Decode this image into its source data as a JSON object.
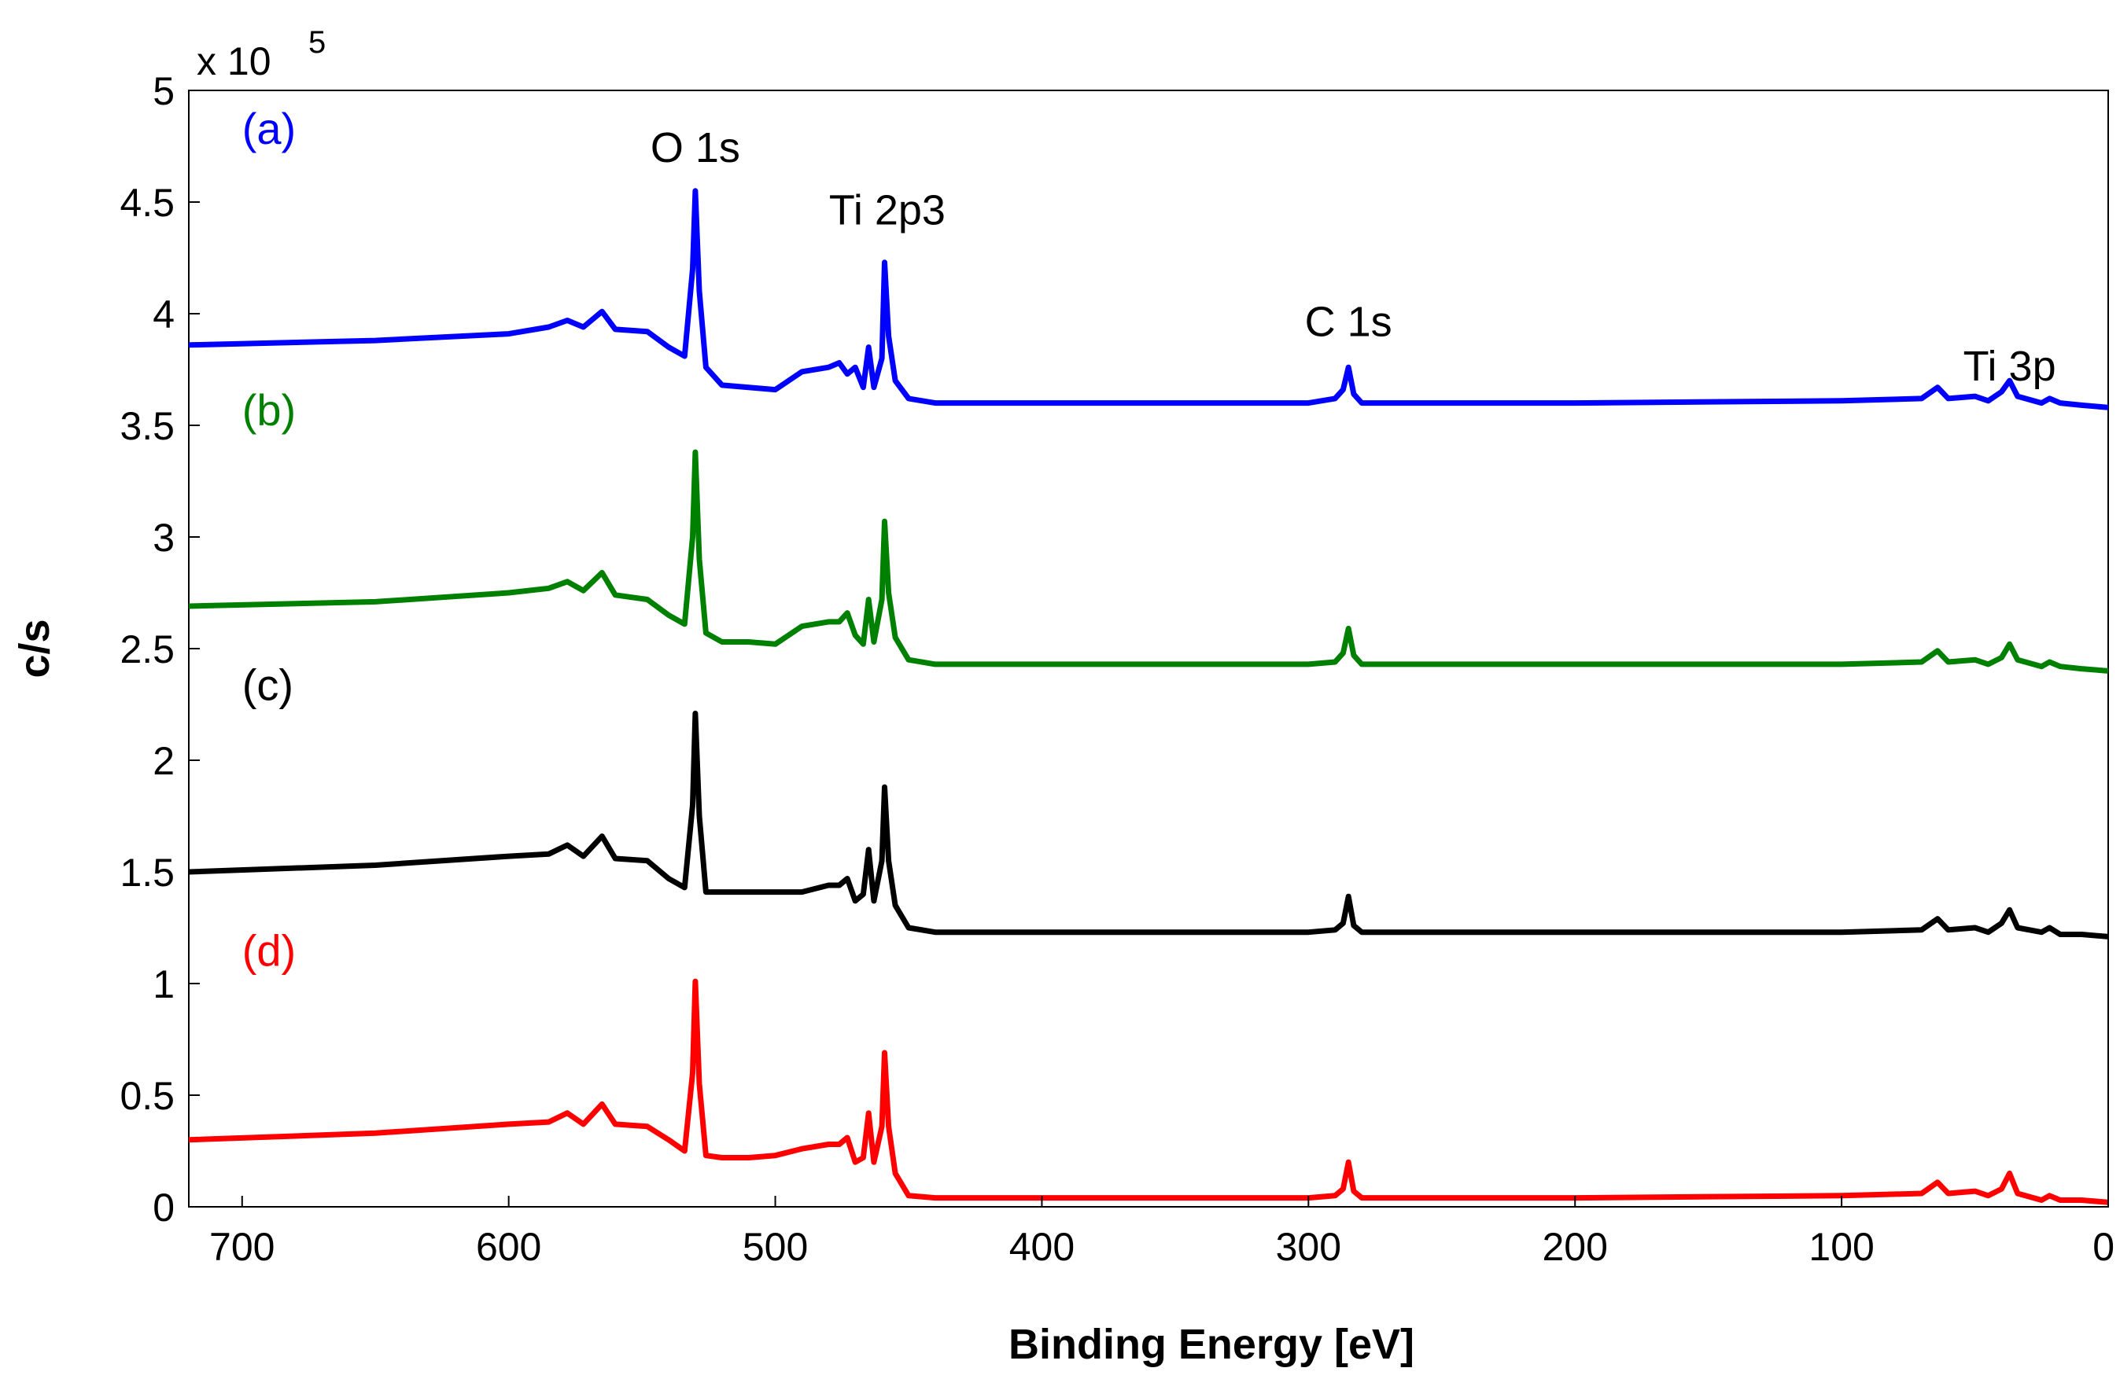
{
  "chart_data": {
    "type": "line",
    "title": "",
    "xlabel": "Binding Energy [eV]",
    "ylabel": "c/s",
    "y_multiplier_label": "x 10",
    "y_multiplier_exponent": "5",
    "xlim": [
      720,
      0
    ],
    "ylim": [
      0,
      5
    ],
    "x_ticks": [
      700,
      600,
      500,
      400,
      300,
      200,
      100,
      0
    ],
    "x_tick_labels": [
      "700",
      "600",
      "500",
      "400",
      "300",
      "200",
      "100",
      "0"
    ],
    "y_ticks": [
      0,
      0.5,
      1,
      1.5,
      2,
      2.5,
      3,
      3.5,
      4,
      4.5,
      5
    ],
    "y_tick_labels": [
      "0",
      "0.5",
      "1",
      "1.5",
      "2",
      "2.5",
      "3",
      "3.5",
      "4",
      "4.5",
      "5"
    ],
    "grid": false,
    "peak_annotations": [
      {
        "text": "O 1s",
        "x": 530,
        "y": 4.68
      },
      {
        "text": "Ti 2p3",
        "x": 458,
        "y": 4.4
      },
      {
        "text": "C 1s",
        "x": 285,
        "y": 3.9
      },
      {
        "text": "Ti 3p",
        "x": 37,
        "y": 3.7
      }
    ],
    "series": [
      {
        "name": "(a)",
        "color": "#0000ff",
        "label_x": 700,
        "label_y": 4.76,
        "points": [
          [
            720,
            3.86
          ],
          [
            650,
            3.88
          ],
          [
            600,
            3.91
          ],
          [
            585,
            3.94
          ],
          [
            578,
            3.97
          ],
          [
            572,
            3.94
          ],
          [
            565,
            4.01
          ],
          [
            560,
            3.93
          ],
          [
            548,
            3.92
          ],
          [
            540,
            3.85
          ],
          [
            534,
            3.81
          ],
          [
            531,
            4.2
          ],
          [
            530,
            4.55
          ],
          [
            528.5,
            4.1
          ],
          [
            526,
            3.76
          ],
          [
            520,
            3.68
          ],
          [
            510,
            3.67
          ],
          [
            500,
            3.66
          ],
          [
            490,
            3.74
          ],
          [
            480,
            3.76
          ],
          [
            476,
            3.78
          ],
          [
            473,
            3.73
          ],
          [
            470,
            3.76
          ],
          [
            467,
            3.67
          ],
          [
            465,
            3.85
          ],
          [
            463,
            3.67
          ],
          [
            460,
            3.8
          ],
          [
            459,
            4.23
          ],
          [
            457.5,
            3.9
          ],
          [
            455,
            3.7
          ],
          [
            450,
            3.62
          ],
          [
            440,
            3.6
          ],
          [
            400,
            3.6
          ],
          [
            300,
            3.6
          ],
          [
            290,
            3.62
          ],
          [
            287,
            3.66
          ],
          [
            285,
            3.76
          ],
          [
            283,
            3.64
          ],
          [
            280,
            3.6
          ],
          [
            200,
            3.6
          ],
          [
            100,
            3.61
          ],
          [
            70,
            3.62
          ],
          [
            64,
            3.67
          ],
          [
            60,
            3.62
          ],
          [
            50,
            3.63
          ],
          [
            45,
            3.61
          ],
          [
            40,
            3.65
          ],
          [
            37,
            3.7
          ],
          [
            34,
            3.63
          ],
          [
            25,
            3.6
          ],
          [
            22,
            3.62
          ],
          [
            18,
            3.6
          ],
          [
            10,
            3.59
          ],
          [
            0,
            3.58
          ]
        ]
      },
      {
        "name": "(b)",
        "color": "#008000",
        "label_x": 700,
        "label_y": 3.5,
        "points": [
          [
            720,
            2.69
          ],
          [
            650,
            2.71
          ],
          [
            600,
            2.75
          ],
          [
            585,
            2.77
          ],
          [
            578,
            2.8
          ],
          [
            572,
            2.76
          ],
          [
            565,
            2.84
          ],
          [
            560,
            2.74
          ],
          [
            548,
            2.72
          ],
          [
            540,
            2.65
          ],
          [
            534,
            2.61
          ],
          [
            531,
            3.0
          ],
          [
            530,
            3.38
          ],
          [
            528.5,
            2.9
          ],
          [
            526,
            2.57
          ],
          [
            520,
            2.53
          ],
          [
            510,
            2.53
          ],
          [
            500,
            2.52
          ],
          [
            490,
            2.6
          ],
          [
            480,
            2.62
          ],
          [
            476,
            2.62
          ],
          [
            473,
            2.66
          ],
          [
            470,
            2.56
          ],
          [
            467,
            2.52
          ],
          [
            465,
            2.72
          ],
          [
            463,
            2.53
          ],
          [
            460,
            2.72
          ],
          [
            459,
            3.07
          ],
          [
            457.5,
            2.75
          ],
          [
            455,
            2.55
          ],
          [
            450,
            2.45
          ],
          [
            440,
            2.43
          ],
          [
            400,
            2.43
          ],
          [
            300,
            2.43
          ],
          [
            290,
            2.44
          ],
          [
            287,
            2.48
          ],
          [
            285,
            2.59
          ],
          [
            283,
            2.47
          ],
          [
            280,
            2.43
          ],
          [
            200,
            2.43
          ],
          [
            100,
            2.43
          ],
          [
            70,
            2.44
          ],
          [
            64,
            2.49
          ],
          [
            60,
            2.44
          ],
          [
            50,
            2.45
          ],
          [
            45,
            2.43
          ],
          [
            40,
            2.46
          ],
          [
            37,
            2.52
          ],
          [
            34,
            2.45
          ],
          [
            25,
            2.42
          ],
          [
            22,
            2.44
          ],
          [
            18,
            2.42
          ],
          [
            10,
            2.41
          ],
          [
            0,
            2.4
          ]
        ]
      },
      {
        "name": "(c)",
        "color": "#000000",
        "label_x": 700,
        "label_y": 2.27,
        "points": [
          [
            720,
            1.5
          ],
          [
            650,
            1.53
          ],
          [
            600,
            1.57
          ],
          [
            585,
            1.58
          ],
          [
            578,
            1.62
          ],
          [
            572,
            1.57
          ],
          [
            565,
            1.66
          ],
          [
            560,
            1.56
          ],
          [
            548,
            1.55
          ],
          [
            540,
            1.47
          ],
          [
            534,
            1.43
          ],
          [
            531,
            1.8
          ],
          [
            530,
            2.21
          ],
          [
            528.5,
            1.75
          ],
          [
            526,
            1.41
          ],
          [
            520,
            1.41
          ],
          [
            510,
            1.41
          ],
          [
            500,
            1.41
          ],
          [
            490,
            1.41
          ],
          [
            480,
            1.44
          ],
          [
            476,
            1.44
          ],
          [
            473,
            1.47
          ],
          [
            470,
            1.37
          ],
          [
            467,
            1.4
          ],
          [
            465,
            1.6
          ],
          [
            463,
            1.37
          ],
          [
            460,
            1.55
          ],
          [
            459,
            1.88
          ],
          [
            457.5,
            1.55
          ],
          [
            455,
            1.35
          ],
          [
            450,
            1.25
          ],
          [
            440,
            1.23
          ],
          [
            400,
            1.23
          ],
          [
            300,
            1.23
          ],
          [
            290,
            1.24
          ],
          [
            287,
            1.27
          ],
          [
            285,
            1.39
          ],
          [
            283,
            1.26
          ],
          [
            280,
            1.23
          ],
          [
            200,
            1.23
          ],
          [
            100,
            1.23
          ],
          [
            70,
            1.24
          ],
          [
            64,
            1.29
          ],
          [
            60,
            1.24
          ],
          [
            50,
            1.25
          ],
          [
            45,
            1.23
          ],
          [
            40,
            1.27
          ],
          [
            37,
            1.33
          ],
          [
            34,
            1.25
          ],
          [
            25,
            1.23
          ],
          [
            22,
            1.25
          ],
          [
            18,
            1.22
          ],
          [
            10,
            1.22
          ],
          [
            0,
            1.21
          ]
        ]
      },
      {
        "name": "(d)",
        "color": "#ff0000",
        "label_x": 700,
        "label_y": 1.08,
        "points": [
          [
            720,
            0.3
          ],
          [
            650,
            0.33
          ],
          [
            600,
            0.37
          ],
          [
            585,
            0.38
          ],
          [
            578,
            0.42
          ],
          [
            572,
            0.37
          ],
          [
            565,
            0.46
          ],
          [
            560,
            0.37
          ],
          [
            548,
            0.36
          ],
          [
            540,
            0.3
          ],
          [
            534,
            0.25
          ],
          [
            531,
            0.6
          ],
          [
            530,
            1.01
          ],
          [
            528.5,
            0.55
          ],
          [
            526,
            0.23
          ],
          [
            520,
            0.22
          ],
          [
            510,
            0.22
          ],
          [
            500,
            0.23
          ],
          [
            490,
            0.26
          ],
          [
            480,
            0.28
          ],
          [
            476,
            0.28
          ],
          [
            473,
            0.31
          ],
          [
            470,
            0.2
          ],
          [
            467,
            0.22
          ],
          [
            465,
            0.42
          ],
          [
            463,
            0.2
          ],
          [
            460,
            0.36
          ],
          [
            459,
            0.69
          ],
          [
            457.5,
            0.36
          ],
          [
            455,
            0.15
          ],
          [
            450,
            0.05
          ],
          [
            440,
            0.04
          ],
          [
            400,
            0.04
          ],
          [
            300,
            0.04
          ],
          [
            290,
            0.05
          ],
          [
            287,
            0.08
          ],
          [
            285,
            0.2
          ],
          [
            283,
            0.07
          ],
          [
            280,
            0.04
          ],
          [
            200,
            0.04
          ],
          [
            100,
            0.05
          ],
          [
            70,
            0.06
          ],
          [
            64,
            0.11
          ],
          [
            60,
            0.06
          ],
          [
            50,
            0.07
          ],
          [
            45,
            0.05
          ],
          [
            40,
            0.08
          ],
          [
            37,
            0.15
          ],
          [
            34,
            0.06
          ],
          [
            25,
            0.03
          ],
          [
            22,
            0.05
          ],
          [
            18,
            0.03
          ],
          [
            10,
            0.03
          ],
          [
            0,
            0.02
          ]
        ]
      }
    ]
  }
}
